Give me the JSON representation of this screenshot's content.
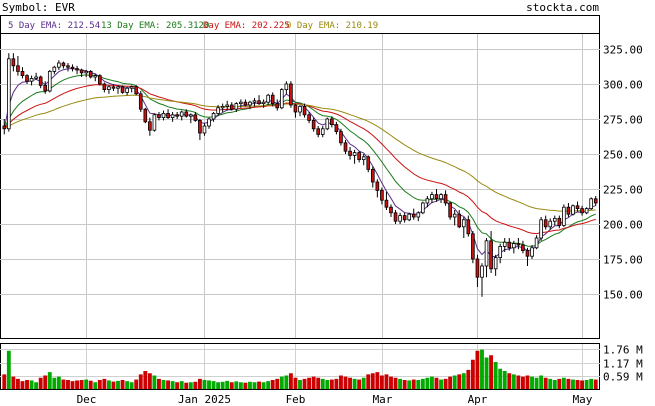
{
  "header": {
    "symbol_text": "Symbol: EVR",
    "site_text": "stockta.com"
  },
  "legend": [
    {
      "text": "5 Day EMA: 212.54",
      "color": "#5a2d8c"
    },
    {
      "text": "13 Day EMA: 205.3120",
      "color": "#1a7a1a"
    },
    {
      "text": "Day EMA: 202.225",
      "color": "#cc1111"
    },
    {
      "text": "0 Day EMA: 210.19",
      "color": "#9a8a10"
    }
  ],
  "volume_axis_labels": [
    "1.76 M",
    "1.17 M",
    "0.59 M"
  ],
  "chart_data": {
    "type": "candlestick",
    "price_ticks": [
      325,
      300,
      275,
      250,
      225,
      200,
      175,
      150
    ],
    "price_range": [
      125,
      340
    ],
    "volume_ticks_millions": [
      1.76,
      1.17,
      0.59
    ],
    "volume_range_millions": [
      0,
      2.0
    ],
    "x_labels": [
      {
        "label": "Dec",
        "index": 18
      },
      {
        "label": "Jan 2025",
        "index": 44
      },
      {
        "label": "Feb",
        "index": 64
      },
      {
        "label": "Mar",
        "index": 83
      },
      {
        "label": "Apr",
        "index": 104
      },
      {
        "label": "May",
        "index": 127
      }
    ],
    "colors": {
      "up": "#ffffff",
      "down": "#cc1111",
      "wick": "#000000",
      "vol_up": "#00aa00",
      "vol_down": "#cc0000"
    },
    "candles": [
      [
        270,
        275,
        264,
        268,
        0.65
      ],
      [
        268,
        322,
        266,
        318,
        1.7
      ],
      [
        318,
        322,
        309,
        313,
        0.55
      ],
      [
        313,
        320,
        306,
        309,
        0.45
      ],
      [
        309,
        312,
        304,
        306,
        0.35
      ],
      [
        306,
        307,
        300,
        302,
        0.4
      ],
      [
        302,
        306,
        299,
        304,
        0.38
      ],
      [
        304,
        308,
        303,
        305,
        0.3
      ],
      [
        305,
        306,
        297,
        299,
        0.5
      ],
      [
        299,
        302,
        293,
        295,
        0.6
      ],
      [
        295,
        310,
        294,
        309,
        0.75
      ],
      [
        309,
        313,
        307,
        312,
        0.5
      ],
      [
        312,
        317,
        310,
        315,
        0.55
      ],
      [
        315,
        316,
        311,
        313,
        0.42
      ],
      [
        313,
        315,
        309,
        312,
        0.4
      ],
      [
        312,
        314,
        309,
        311,
        0.35
      ],
      [
        311,
        313,
        307,
        310,
        0.38
      ],
      [
        310,
        311,
        305,
        308,
        0.4
      ],
      [
        308,
        310,
        305,
        309,
        0.42
      ],
      [
        309,
        310,
        304,
        305,
        0.37
      ],
      [
        305,
        307,
        302,
        306,
        0.3
      ],
      [
        306,
        307,
        299,
        300,
        0.4
      ],
      [
        300,
        301,
        294,
        296,
        0.45
      ],
      [
        296,
        299,
        293,
        298,
        0.38
      ],
      [
        298,
        300,
        295,
        297,
        0.33
      ],
      [
        297,
        299,
        293,
        298,
        0.36
      ],
      [
        298,
        299,
        293,
        294,
        0.4
      ],
      [
        294,
        298,
        292,
        297,
        0.35
      ],
      [
        297,
        299,
        294,
        298,
        0.3
      ],
      [
        298,
        299,
        292,
        293,
        0.42
      ],
      [
        293,
        295,
        280,
        282,
        0.65
      ],
      [
        282,
        283,
        272,
        273,
        0.8
      ],
      [
        273,
        276,
        263,
        267,
        0.7
      ],
      [
        267,
        279,
        266,
        278,
        0.6
      ],
      [
        278,
        280,
        274,
        276,
        0.45
      ],
      [
        276,
        281,
        274,
        279,
        0.4
      ],
      [
        279,
        282,
        275,
        276,
        0.38
      ],
      [
        276,
        280,
        273,
        278,
        0.35
      ],
      [
        278,
        280,
        275,
        277,
        0.3
      ],
      [
        277,
        281,
        274,
        280,
        0.35
      ],
      [
        280,
        282,
        276,
        277,
        0.28
      ],
      [
        277,
        279,
        272,
        278,
        0.3
      ],
      [
        278,
        280,
        273,
        274,
        0.32
      ],
      [
        274,
        275,
        260,
        265,
        0.45
      ],
      [
        265,
        272,
        263,
        270,
        0.4
      ],
      [
        270,
        276,
        268,
        275,
        0.38
      ],
      [
        275,
        280,
        273,
        279,
        0.35
      ],
      [
        279,
        285,
        277,
        283,
        0.3
      ],
      [
        283,
        286,
        280,
        284,
        0.32
      ],
      [
        284,
        288,
        281,
        285,
        0.36
      ],
      [
        285,
        287,
        281,
        282,
        0.3
      ],
      [
        282,
        287,
        280,
        286,
        0.34
      ],
      [
        286,
        289,
        283,
        287,
        0.3
      ],
      [
        287,
        289,
        284,
        285,
        0.28
      ],
      [
        285,
        288,
        282,
        287,
        0.32
      ],
      [
        287,
        290,
        284,
        288,
        0.3
      ],
      [
        288,
        292,
        285,
        286,
        0.33
      ],
      [
        286,
        289,
        283,
        287,
        0.3
      ],
      [
        287,
        293,
        285,
        292,
        0.35
      ],
      [
        292,
        294,
        284,
        286,
        0.4
      ],
      [
        286,
        289,
        281,
        283,
        0.45
      ],
      [
        283,
        297,
        282,
        296,
        0.55
      ],
      [
        296,
        302,
        293,
        300,
        0.6
      ],
      [
        300,
        302,
        283,
        285,
        0.7
      ],
      [
        285,
        286,
        276,
        280,
        0.5
      ],
      [
        280,
        285,
        277,
        284,
        0.4
      ],
      [
        284,
        286,
        276,
        278,
        0.45
      ],
      [
        278,
        280,
        272,
        274,
        0.5
      ],
      [
        274,
        276,
        266,
        268,
        0.55
      ],
      [
        268,
        270,
        262,
        264,
        0.5
      ],
      [
        264,
        270,
        262,
        268,
        0.45
      ],
      [
        268,
        276,
        267,
        275,
        0.4
      ],
      [
        275,
        277,
        269,
        271,
        0.42
      ],
      [
        271,
        273,
        264,
        266,
        0.45
      ],
      [
        266,
        268,
        256,
        258,
        0.6
      ],
      [
        258,
        260,
        250,
        252,
        0.55
      ],
      [
        252,
        255,
        246,
        249,
        0.5
      ],
      [
        249,
        253,
        243,
        251,
        0.45
      ],
      [
        251,
        252,
        244,
        246,
        0.42
      ],
      [
        246,
        250,
        242,
        248,
        0.5
      ],
      [
        248,
        249,
        237,
        239,
        0.65
      ],
      [
        239,
        241,
        226,
        230,
        0.7
      ],
      [
        230,
        232,
        219,
        224,
        0.75
      ],
      [
        224,
        226,
        214,
        217,
        0.6
      ],
      [
        217,
        223,
        210,
        212,
        0.65
      ],
      [
        212,
        214,
        205,
        208,
        0.55
      ],
      [
        208,
        210,
        200,
        202,
        0.5
      ],
      [
        202,
        208,
        200,
        206,
        0.45
      ],
      [
        206,
        208,
        201,
        203,
        0.4
      ],
      [
        203,
        208,
        202,
        207,
        0.38
      ],
      [
        207,
        211,
        203,
        205,
        0.42
      ],
      [
        205,
        209,
        202,
        208,
        0.4
      ],
      [
        208,
        216,
        207,
        215,
        0.45
      ],
      [
        215,
        220,
        212,
        218,
        0.5
      ],
      [
        218,
        223,
        215,
        221,
        0.55
      ],
      [
        221,
        225,
        216,
        218,
        0.5
      ],
      [
        218,
        222,
        215,
        221,
        0.42
      ],
      [
        221,
        224,
        213,
        215,
        0.45
      ],
      [
        215,
        216,
        203,
        205,
        0.55
      ],
      [
        205,
        210,
        199,
        207,
        0.6
      ],
      [
        207,
        210,
        197,
        198,
        0.65
      ],
      [
        198,
        205,
        190,
        203,
        0.7
      ],
      [
        203,
        206,
        191,
        193,
        0.85
      ],
      [
        193,
        195,
        172,
        175,
        1.3
      ],
      [
        175,
        178,
        155,
        162,
        1.7
      ],
      [
        162,
        172,
        148,
        170,
        1.75
      ],
      [
        170,
        190,
        162,
        188,
        1.4
      ],
      [
        188,
        195,
        165,
        168,
        1.5
      ],
      [
        168,
        178,
        163,
        176,
        1.2
      ],
      [
        176,
        186,
        172,
        184,
        0.9
      ],
      [
        184,
        190,
        180,
        187,
        0.8
      ],
      [
        187,
        190,
        181,
        183,
        0.7
      ],
      [
        183,
        188,
        179,
        186,
        0.65
      ],
      [
        186,
        190,
        182,
        185,
        0.6
      ],
      [
        185,
        188,
        179,
        181,
        0.55
      ],
      [
        181,
        183,
        170,
        177,
        0.6
      ],
      [
        177,
        185,
        175,
        183,
        0.55
      ],
      [
        183,
        192,
        182,
        190,
        0.5
      ],
      [
        190,
        205,
        188,
        203,
        0.6
      ],
      [
        203,
        206,
        196,
        198,
        0.5
      ],
      [
        198,
        204,
        196,
        202,
        0.45
      ],
      [
        202,
        206,
        199,
        204,
        0.4
      ],
      [
        204,
        206,
        197,
        199,
        0.45
      ],
      [
        199,
        214,
        198,
        212,
        0.5
      ],
      [
        212,
        215,
        205,
        207,
        0.45
      ],
      [
        207,
        214,
        206,
        213,
        0.42
      ],
      [
        213,
        216,
        209,
        211,
        0.4
      ],
      [
        211,
        213,
        206,
        208,
        0.38
      ],
      [
        208,
        212,
        207,
        211,
        0.4
      ],
      [
        211,
        219,
        210,
        218,
        0.45
      ],
      [
        218,
        220,
        213,
        215,
        0.42
      ]
    ]
  }
}
